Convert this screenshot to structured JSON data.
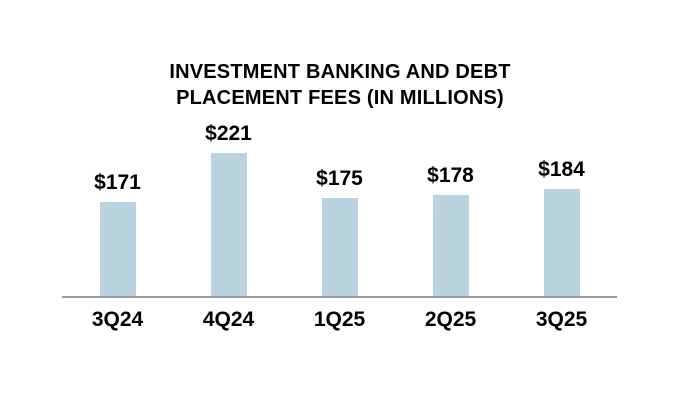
{
  "page": {
    "background": "#ffffff"
  },
  "chart_data": {
    "type": "bar",
    "title": "INVESTMENT BANKING AND DEBT PLACEMENT FEES (IN MILLIONS)",
    "title_lines": [
      "INVESTMENT BANKING AND DEBT",
      "PLACEMENT FEES (IN MILLIONS)"
    ],
    "categories": [
      "3Q24",
      "4Q24",
      "1Q25",
      "2Q25",
      "3Q25"
    ],
    "values": [
      171,
      221,
      175,
      178,
      184
    ],
    "value_labels": [
      "$171",
      "$221",
      "$175",
      "$178",
      "$184"
    ],
    "xlabel": "",
    "ylabel": "",
    "ylim": [
      75,
      235
    ],
    "grid": false,
    "legend": false,
    "colors": {
      "bar_fill": "#b9d3e1",
      "axis_line": "#9b9b9b",
      "text": "#000000"
    }
  }
}
